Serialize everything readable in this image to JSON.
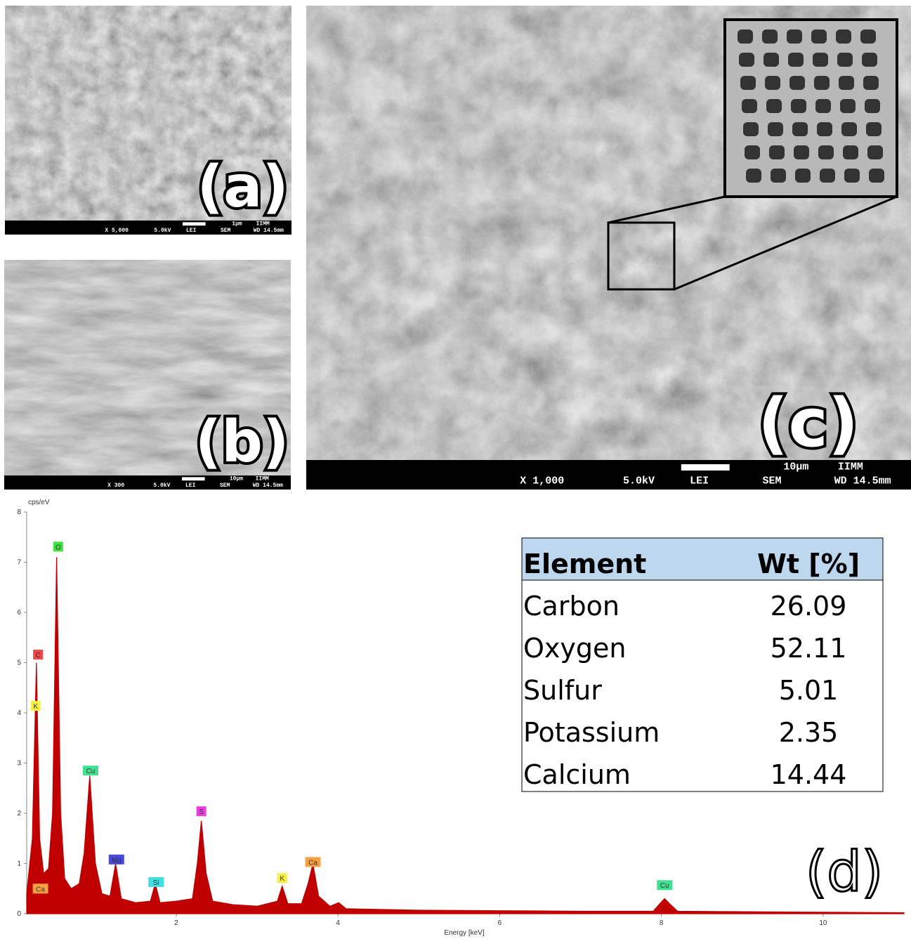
{
  "panels": [
    {
      "label": "(a)",
      "scale": "1µm",
      "lab": "IIMM",
      "magnification": "X 5,000",
      "voltage": "5.0kV",
      "detector": "LEI",
      "mode": "SEM",
      "wd": "WD 14.5mm"
    },
    {
      "label": "(b)",
      "scale": "10µm",
      "lab": "IIMM",
      "magnification": "X 300",
      "voltage": "5.0kV",
      "detector": "LEI",
      "mode": "SEM",
      "wd": "WD 14.5mm"
    },
    {
      "label": "(c)",
      "scale": "10µm",
      "lab": "IIMM",
      "magnification": "X 1,000",
      "voltage": "5.0kV",
      "detector": "LEI",
      "mode": "SEM",
      "wd": "WD 14.5mm"
    }
  ],
  "chart_data": {
    "type": "area",
    "label": "(d)",
    "y_label": "cps/eV",
    "x_label": "Energy [keV]",
    "color": "#c00000",
    "xlim": [
      0.15,
      11
    ],
    "ylim": [
      0,
      8
    ],
    "xticks": [
      2,
      4,
      6,
      8,
      10
    ],
    "yticks": [
      0,
      1,
      2,
      3,
      4,
      5,
      6,
      7,
      8
    ],
    "x": [
      0.15,
      0.22,
      0.27,
      0.31,
      0.36,
      0.42,
      0.47,
      0.52,
      0.57,
      0.62,
      0.7,
      0.8,
      0.86,
      0.93,
      1.0,
      1.08,
      1.18,
      1.25,
      1.32,
      1.5,
      1.68,
      1.74,
      1.8,
      2.0,
      2.2,
      2.26,
      2.31,
      2.37,
      2.45,
      2.7,
      3.0,
      3.25,
      3.31,
      3.38,
      3.55,
      3.63,
      3.69,
      3.76,
      3.9,
      4.01,
      4.1,
      5,
      6,
      7,
      7.9,
      7.98,
      8.04,
      8.1,
      8.2,
      9,
      10,
      11
    ],
    "values": [
      0.4,
      1.5,
      5.0,
      1.5,
      0.8,
      0.9,
      2.0,
      7.1,
      2.0,
      0.7,
      0.5,
      0.6,
      1.2,
      2.75,
      1.0,
      0.4,
      0.35,
      1.0,
      0.3,
      0.22,
      0.25,
      0.6,
      0.22,
      0.25,
      0.3,
      1.0,
      1.85,
      0.8,
      0.25,
      0.18,
      0.15,
      0.25,
      0.55,
      0.2,
      0.2,
      0.6,
      1.0,
      0.35,
      0.15,
      0.22,
      0.1,
      0.07,
      0.06,
      0.05,
      0.05,
      0.2,
      0.3,
      0.2,
      0.05,
      0.04,
      0.03,
      0.02
    ],
    "peak_labels": [
      {
        "text": "C",
        "x": 0.29,
        "y": 5.16,
        "color": "#f04848"
      },
      {
        "text": "K",
        "x": 0.26,
        "y": 4.14,
        "color": "#f8f040"
      },
      {
        "text": "Ca",
        "x": 0.32,
        "y": 0.5,
        "color": "#f8a040"
      },
      {
        "text": "O",
        "x": 0.54,
        "y": 7.31,
        "color": "#40e040"
      },
      {
        "text": "Cu",
        "x": 0.94,
        "y": 2.85,
        "color": "#40e090"
      },
      {
        "text": "Mg",
        "x": 1.26,
        "y": 1.08,
        "color": "#4848e0"
      },
      {
        "text": "Si",
        "x": 1.75,
        "y": 0.63,
        "color": "#40e0e0"
      },
      {
        "text": "S",
        "x": 2.31,
        "y": 2.04,
        "color": "#e840e0"
      },
      {
        "text": "K",
        "x": 3.31,
        "y": 0.71,
        "color": "#f8f040"
      },
      {
        "text": "Ca",
        "x": 3.69,
        "y": 1.03,
        "color": "#f8a040"
      },
      {
        "text": "Cu",
        "x": 8.04,
        "y": 0.57,
        "color": "#40e090"
      }
    ]
  },
  "table": {
    "header": [
      "Element",
      "Wt [%]"
    ],
    "rows": [
      [
        "Carbon",
        "26.09"
      ],
      [
        "Oxygen",
        "52.11"
      ],
      [
        "Sulfur",
        "5.01"
      ],
      [
        "Potassium",
        "2.35"
      ],
      [
        "Calcium",
        "14.44"
      ]
    ]
  }
}
